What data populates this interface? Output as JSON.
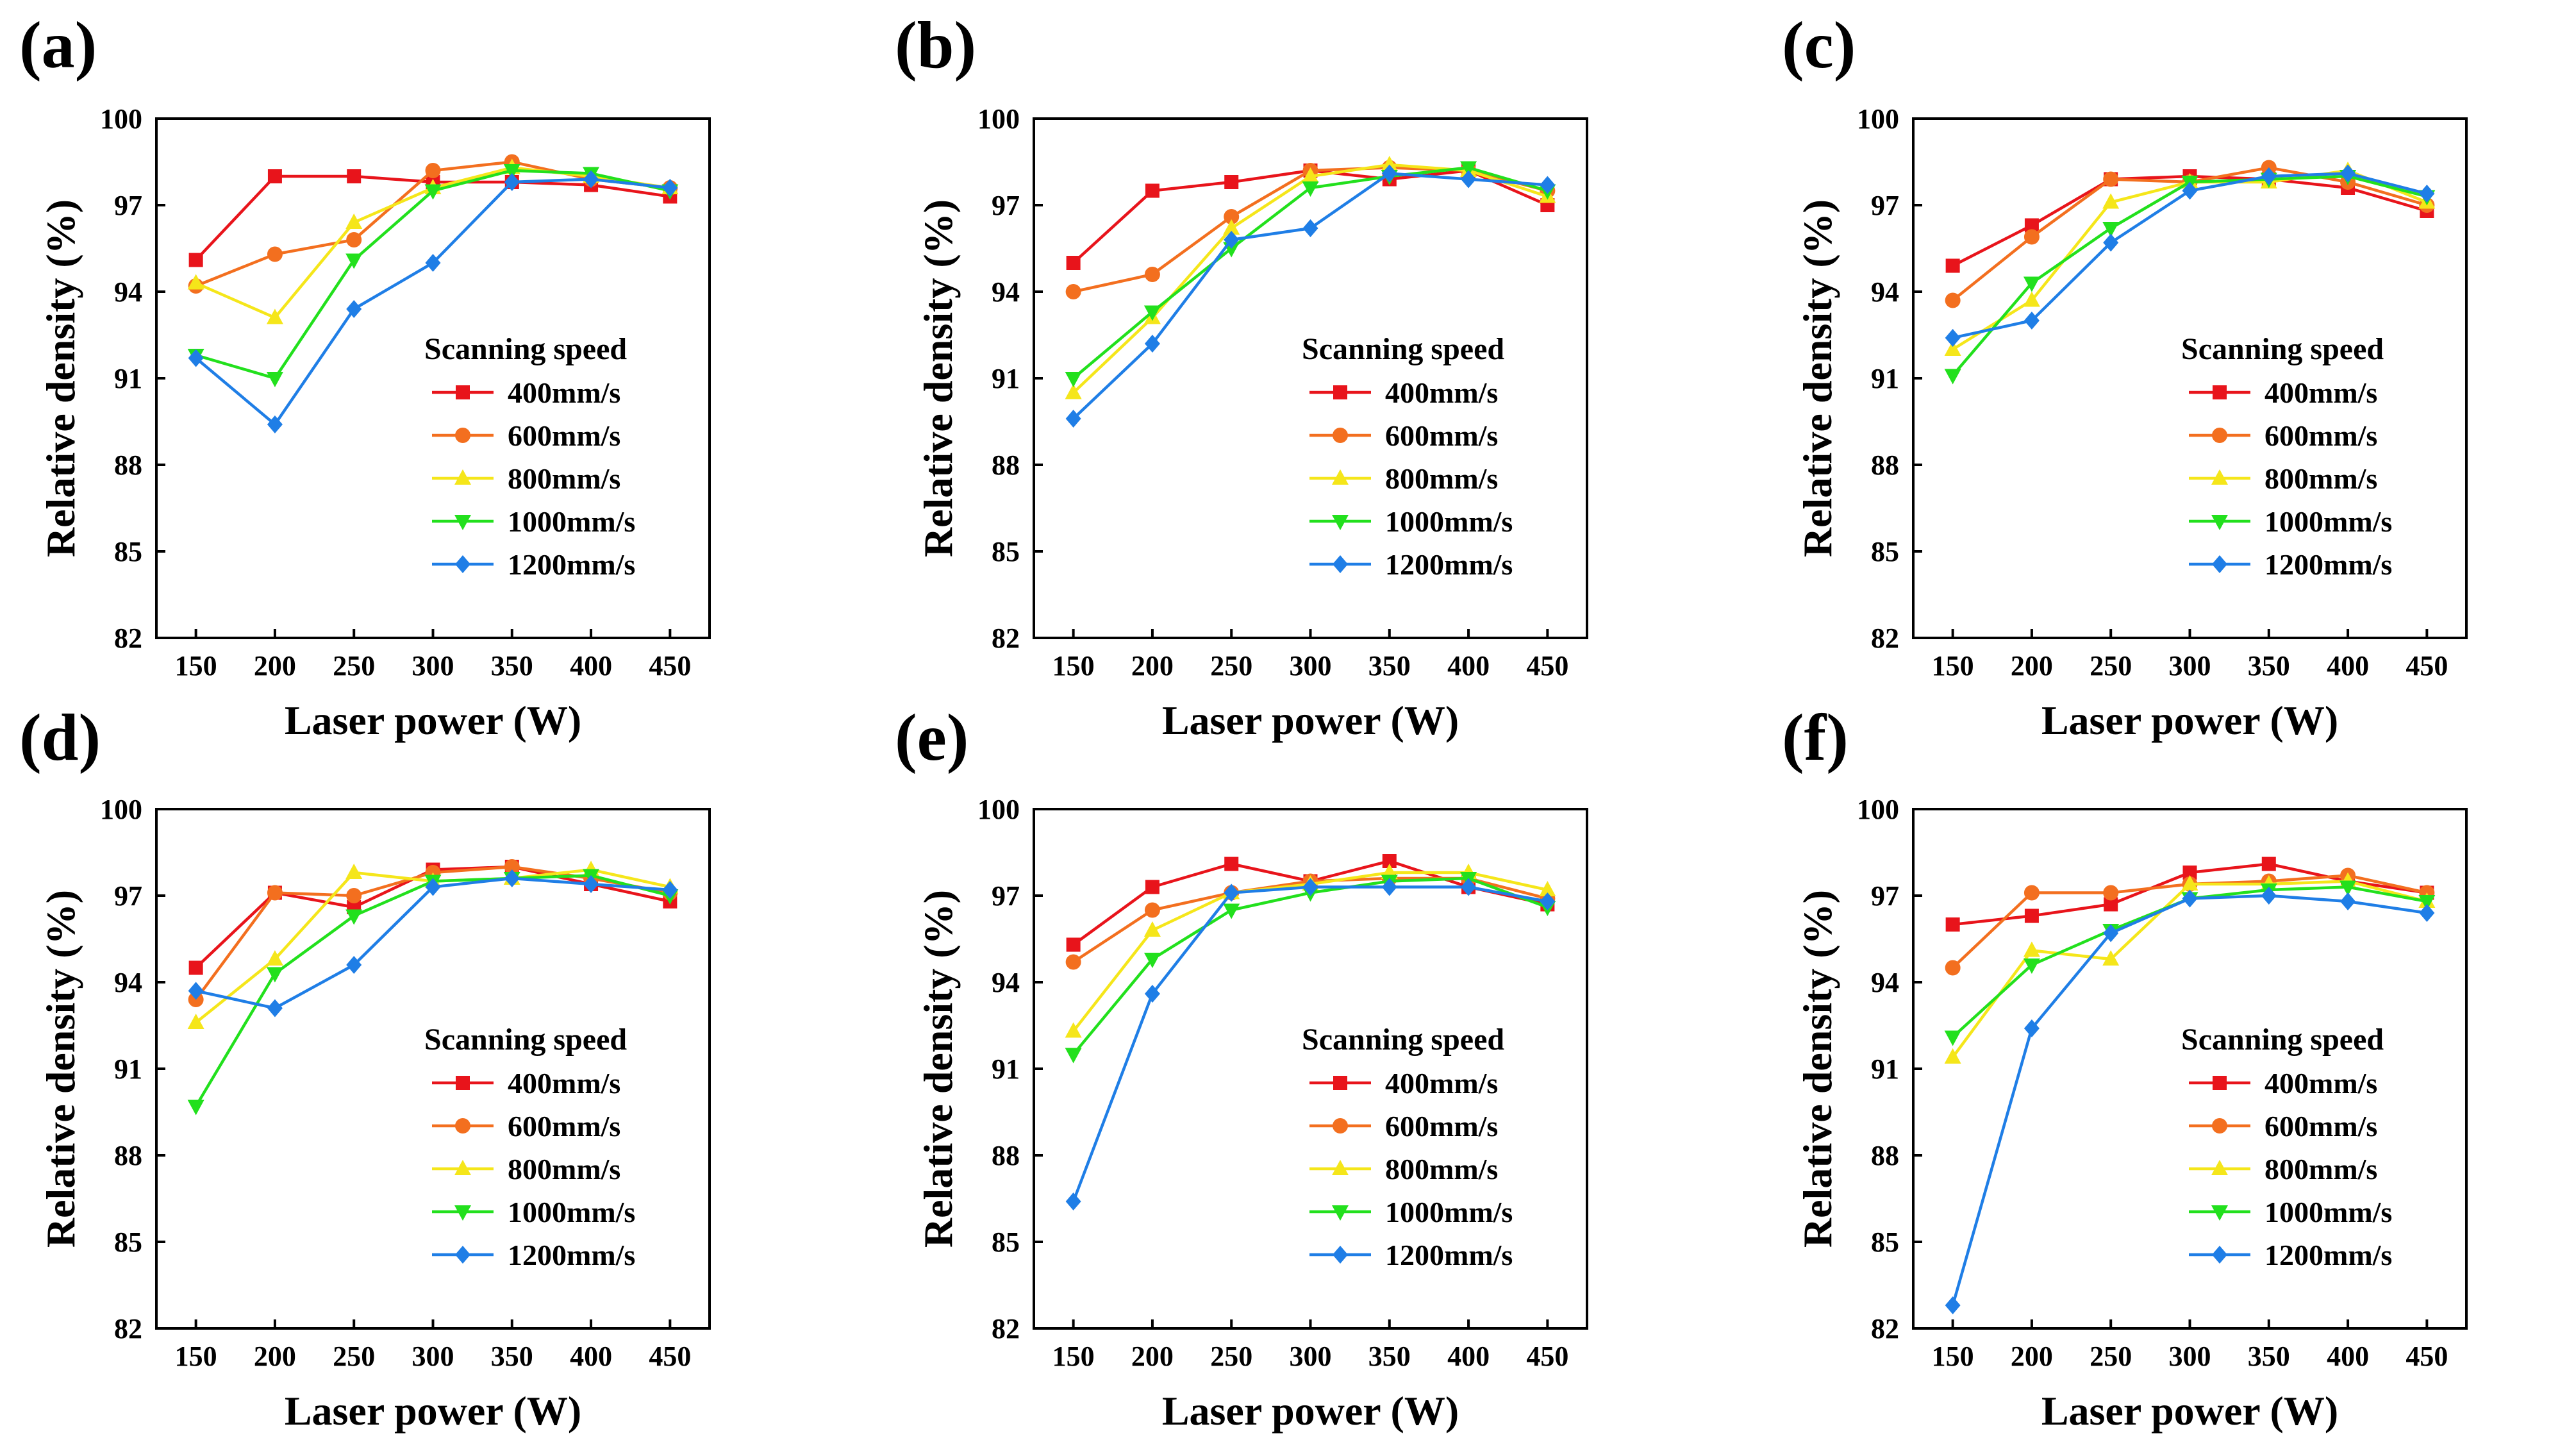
{
  "colors": {
    "400mm/s": "#e8141b",
    "600mm/s": "#f36f1f",
    "800mm/s": "#f5e61a",
    "1000mm/s": "#22e01d",
    "1200mm/s": "#1f7ee6"
  },
  "markers": {
    "400mm/s": "square",
    "600mm/s": "circle",
    "800mm/s": "triangle-up",
    "1000mm/s": "triangle-down",
    "1200mm/s": "diamond"
  },
  "chart_data": [
    {
      "type": "line",
      "panel_label": "(a)",
      "xlabel": "Laser power (W)",
      "ylabel": "Relative density (%)",
      "x": [
        150,
        200,
        250,
        300,
        350,
        400,
        450
      ],
      "xticks": [
        "150",
        "200",
        "250",
        "300",
        "350",
        "400",
        "450"
      ],
      "yticks": [
        "82",
        "85",
        "88",
        "91",
        "94",
        "97",
        "100"
      ],
      "ylim": [
        82,
        100
      ],
      "xlim": [
        125,
        475
      ],
      "legend_title": "Scanning speed",
      "legend_position": "lower-right",
      "series": [
        {
          "name": "400mm/s",
          "values": [
            95.1,
            98.0,
            98.0,
            97.8,
            97.8,
            97.7,
            97.3
          ]
        },
        {
          "name": "600mm/s",
          "values": [
            94.2,
            95.3,
            95.8,
            98.2,
            98.5,
            97.9,
            97.6
          ]
        },
        {
          "name": "800mm/s",
          "values": [
            94.3,
            93.1,
            96.4,
            97.6,
            98.3,
            98.0,
            97.6
          ]
        },
        {
          "name": "1000mm/s",
          "values": [
            91.8,
            91.0,
            95.1,
            97.5,
            98.2,
            98.1,
            97.5
          ]
        },
        {
          "name": "1200mm/s",
          "values": [
            91.7,
            89.4,
            93.4,
            95.0,
            97.8,
            97.9,
            97.6
          ]
        }
      ]
    },
    {
      "type": "line",
      "panel_label": "(b)",
      "xlabel": "Laser power (W)",
      "ylabel": "Relative density (%)",
      "x": [
        150,
        200,
        250,
        300,
        350,
        400,
        450
      ],
      "xticks": [
        "150",
        "200",
        "250",
        "300",
        "350",
        "400",
        "450"
      ],
      "yticks": [
        "82",
        "85",
        "88",
        "91",
        "94",
        "97",
        "100"
      ],
      "ylim": [
        82,
        100
      ],
      "xlim": [
        125,
        475
      ],
      "legend_title": "Scanning speed",
      "legend_position": "lower-right",
      "series": [
        {
          "name": "400mm/s",
          "values": [
            95.0,
            97.5,
            97.8,
            98.2,
            97.9,
            98.2,
            97.0
          ]
        },
        {
          "name": "600mm/s",
          "values": [
            94.0,
            94.6,
            96.6,
            98.2,
            98.3,
            98.2,
            97.5
          ]
        },
        {
          "name": "800mm/s",
          "values": [
            90.5,
            93.1,
            96.2,
            98.0,
            98.4,
            98.2,
            97.3
          ]
        },
        {
          "name": "1000mm/s",
          "values": [
            91.0,
            93.3,
            95.5,
            97.6,
            98.0,
            98.3,
            97.5
          ]
        },
        {
          "name": "1200mm/s",
          "values": [
            89.6,
            92.2,
            95.8,
            96.2,
            98.1,
            97.9,
            97.7
          ]
        }
      ]
    },
    {
      "type": "line",
      "panel_label": "(c)",
      "xlabel": "Laser power (W)",
      "ylabel": "Relative density (%)",
      "x": [
        150,
        200,
        250,
        300,
        350,
        400,
        450
      ],
      "xticks": [
        "150",
        "200",
        "250",
        "300",
        "350",
        "400",
        "450"
      ],
      "yticks": [
        "82",
        "85",
        "88",
        "91",
        "94",
        "97",
        "100"
      ],
      "ylim": [
        82,
        100
      ],
      "xlim": [
        125,
        475
      ],
      "legend_title": "Scanning speed",
      "legend_position": "lower-right",
      "series": [
        {
          "name": "400mm/s",
          "values": [
            94.9,
            96.3,
            97.9,
            98.0,
            97.9,
            97.6,
            96.8
          ]
        },
        {
          "name": "600mm/s",
          "values": [
            93.7,
            95.9,
            97.9,
            97.8,
            98.3,
            97.8,
            97.0
          ]
        },
        {
          "name": "800mm/s",
          "values": [
            92.0,
            93.7,
            97.1,
            97.8,
            97.8,
            98.2,
            97.1
          ]
        },
        {
          "name": "1000mm/s",
          "values": [
            91.1,
            94.3,
            96.2,
            97.8,
            97.9,
            98.0,
            97.3
          ]
        },
        {
          "name": "1200mm/s",
          "values": [
            92.4,
            93.0,
            95.7,
            97.5,
            98.0,
            98.1,
            97.4
          ]
        }
      ]
    },
    {
      "type": "line",
      "panel_label": "(d)",
      "xlabel": "Laser power (W)",
      "ylabel": "Relative density (%)",
      "x": [
        150,
        200,
        250,
        300,
        350,
        400,
        450
      ],
      "xticks": [
        "150",
        "200",
        "250",
        "300",
        "350",
        "400",
        "450"
      ],
      "yticks": [
        "82",
        "85",
        "88",
        "91",
        "94",
        "97",
        "100"
      ],
      "ylim": [
        82,
        100
      ],
      "xlim": [
        125,
        475
      ],
      "legend_title": "Scanning speed",
      "legend_position": "lower-right",
      "series": [
        {
          "name": "400mm/s",
          "values": [
            94.5,
            97.1,
            96.6,
            97.9,
            98.0,
            97.4,
            96.8
          ]
        },
        {
          "name": "600mm/s",
          "values": [
            93.4,
            97.1,
            97.0,
            97.8,
            98.0,
            97.6,
            97.1
          ]
        },
        {
          "name": "800mm/s",
          "values": [
            92.6,
            94.8,
            97.8,
            97.5,
            97.6,
            97.9,
            97.3
          ]
        },
        {
          "name": "1000mm/s",
          "values": [
            89.7,
            94.3,
            96.3,
            97.5,
            97.6,
            97.7,
            97.0
          ]
        },
        {
          "name": "1200mm/s",
          "values": [
            93.7,
            93.1,
            94.6,
            97.3,
            97.6,
            97.4,
            97.2
          ]
        }
      ]
    },
    {
      "type": "line",
      "panel_label": "(e)",
      "xlabel": "Laser power (W)",
      "ylabel": "Relative density (%)",
      "x": [
        150,
        200,
        250,
        300,
        350,
        400,
        450
      ],
      "xticks": [
        "150",
        "200",
        "250",
        "300",
        "350",
        "400",
        "450"
      ],
      "yticks": [
        "82",
        "85",
        "88",
        "91",
        "94",
        "97",
        "100"
      ],
      "ylim": [
        82,
        100
      ],
      "xlim": [
        125,
        475
      ],
      "legend_title": "Scanning speed",
      "legend_position": "lower-right",
      "series": [
        {
          "name": "400mm/s",
          "values": [
            95.3,
            97.3,
            98.1,
            97.5,
            98.2,
            97.3,
            96.7
          ]
        },
        {
          "name": "600mm/s",
          "values": [
            94.7,
            96.5,
            97.1,
            97.5,
            97.6,
            97.6,
            96.9
          ]
        },
        {
          "name": "800mm/s",
          "values": [
            92.3,
            95.8,
            97.1,
            97.4,
            97.8,
            97.8,
            97.2
          ]
        },
        {
          "name": "1000mm/s",
          "values": [
            91.5,
            94.8,
            96.5,
            97.1,
            97.5,
            97.6,
            96.6
          ]
        },
        {
          "name": "1200mm/s",
          "values": [
            86.4,
            93.6,
            97.1,
            97.3,
            97.3,
            97.3,
            96.8
          ]
        }
      ]
    },
    {
      "type": "line",
      "panel_label": "(f)",
      "xlabel": "Laser power (W)",
      "ylabel": "Relative density (%)",
      "x": [
        150,
        200,
        250,
        300,
        350,
        400,
        450
      ],
      "xticks": [
        "150",
        "200",
        "250",
        "300",
        "350",
        "400",
        "450"
      ],
      "yticks": [
        "82",
        "85",
        "88",
        "91",
        "94",
        "97",
        "100"
      ],
      "ylim": [
        82,
        100
      ],
      "xlim": [
        125,
        475
      ],
      "legend_title": "Scanning speed",
      "legend_position": "lower-right",
      "series": [
        {
          "name": "400mm/s",
          "values": [
            96.0,
            96.3,
            96.7,
            97.8,
            98.1,
            97.5,
            97.1
          ]
        },
        {
          "name": "600mm/s",
          "values": [
            94.5,
            97.1,
            97.1,
            97.4,
            97.5,
            97.7,
            97.1
          ]
        },
        {
          "name": "800mm/s",
          "values": [
            91.4,
            95.1,
            94.8,
            97.4,
            97.4,
            97.5,
            96.8
          ]
        },
        {
          "name": "1000mm/s",
          "values": [
            92.1,
            94.6,
            95.8,
            96.9,
            97.2,
            97.3,
            96.8
          ]
        },
        {
          "name": "1200mm/s",
          "values": [
            82.8,
            92.4,
            95.7,
            96.9,
            97.0,
            96.8,
            96.4
          ]
        }
      ]
    }
  ]
}
